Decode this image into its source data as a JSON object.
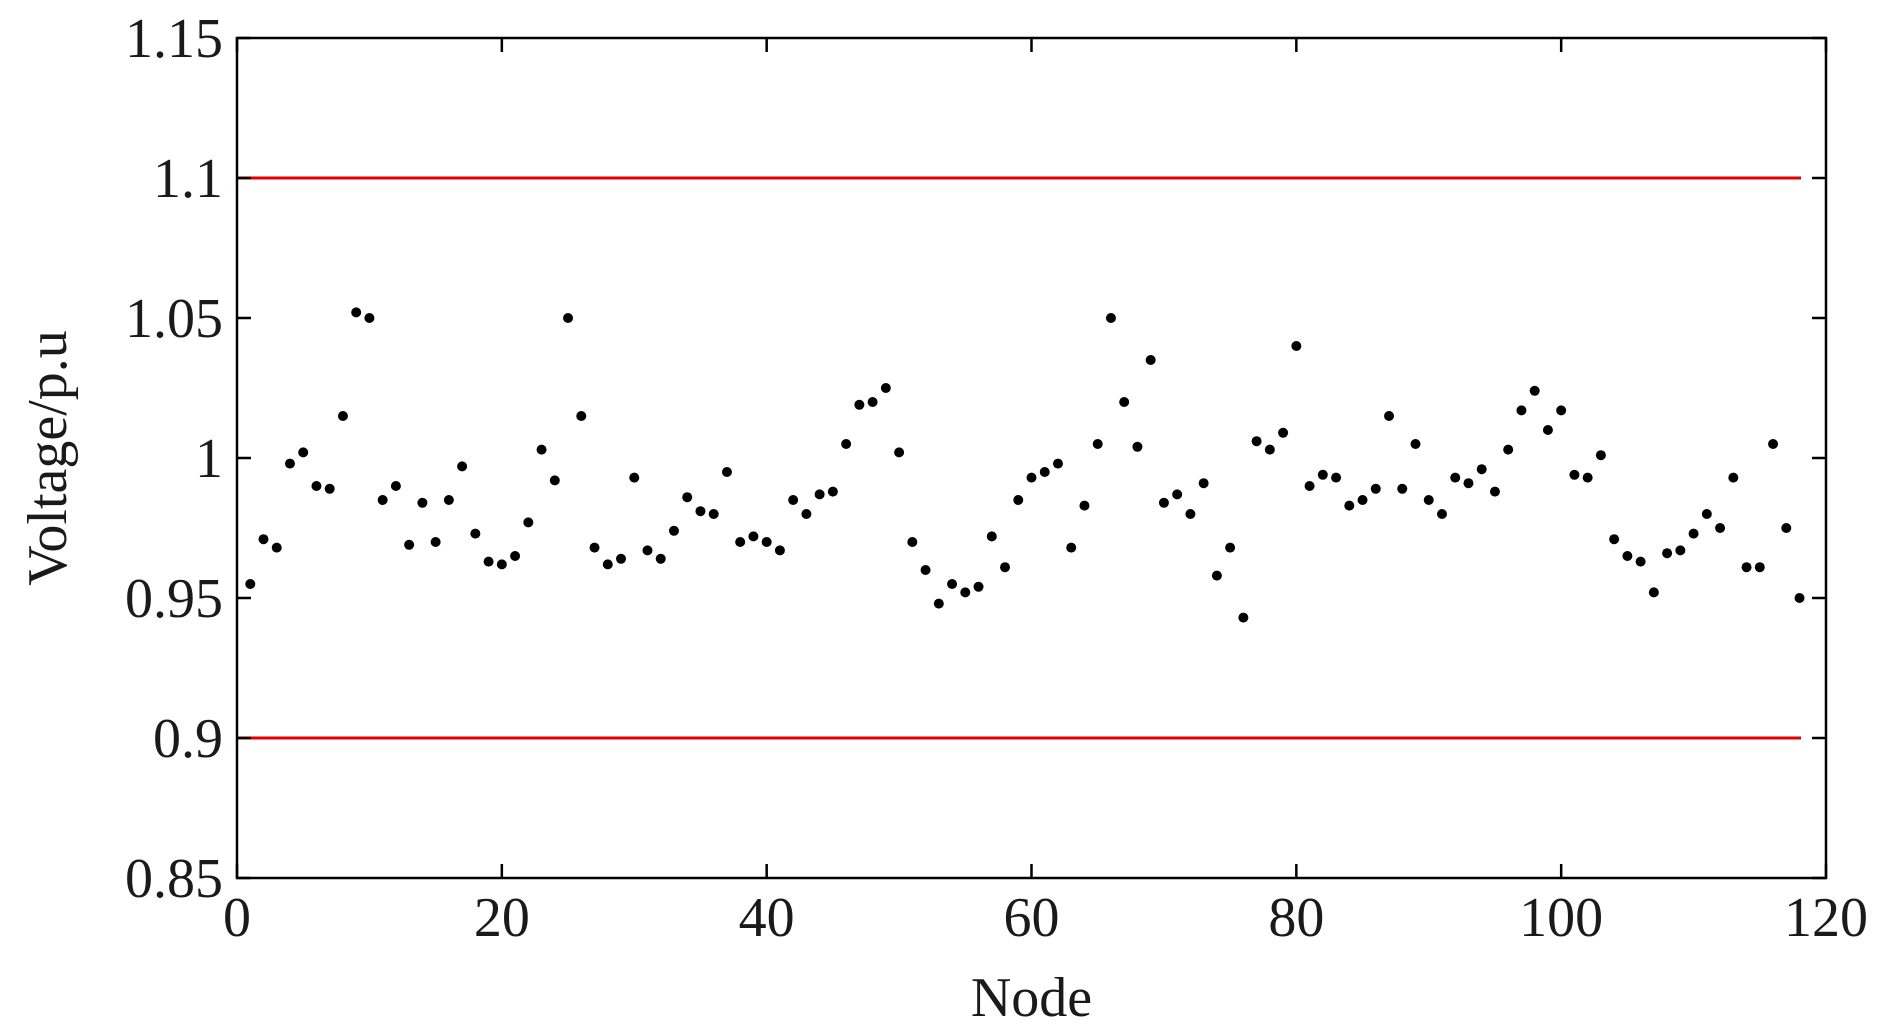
{
  "chart_data": {
    "type": "scatter",
    "xlabel": "Node",
    "ylabel": "Voltage/p.u",
    "xlim": [
      0,
      120
    ],
    "ylim": [
      0.85,
      1.15
    ],
    "xticks": [
      0,
      20,
      40,
      60,
      80,
      100,
      120
    ],
    "xtick_labels": [
      "0",
      "20",
      "40",
      "60",
      "80",
      "100",
      "120"
    ],
    "yticks": [
      0.85,
      0.9,
      0.95,
      1.0,
      1.05,
      1.1,
      1.15
    ],
    "ytick_labels": [
      "0.85",
      "0.9",
      "0.95",
      "1",
      "1.05",
      "1.1",
      "1.15"
    ],
    "grid": false,
    "colors": {
      "points": "#000000",
      "limits": "#e00000",
      "axes": "#000000"
    },
    "reference_lines": [
      {
        "y": 1.1
      },
      {
        "y": 0.9
      }
    ],
    "series": [
      {
        "x": [
          1,
          2,
          3,
          4,
          5,
          6,
          7,
          8,
          9,
          10,
          11,
          12,
          13,
          14,
          15,
          16,
          17,
          18,
          19,
          20,
          21,
          22,
          23,
          24,
          25,
          26,
          27,
          28,
          29,
          30,
          31,
          32,
          33,
          34,
          35,
          36,
          37,
          38,
          39,
          40,
          41,
          42,
          43,
          44,
          45,
          46,
          47,
          48,
          49,
          50,
          51,
          52,
          53,
          54,
          55,
          56,
          57,
          58,
          59,
          60,
          61,
          62,
          63,
          64,
          65,
          66,
          67,
          68,
          69,
          70,
          71,
          72,
          73,
          74,
          75,
          76,
          77,
          78,
          79,
          80,
          81,
          82,
          83,
          84,
          85,
          86,
          87,
          88,
          89,
          90,
          91,
          92,
          93,
          94,
          95,
          96,
          97,
          98,
          99,
          100,
          101,
          102,
          103,
          104,
          105,
          106,
          107,
          108,
          109,
          110,
          111,
          112,
          113,
          114,
          115,
          116,
          117,
          118
        ],
        "y": [
          0.955,
          0.971,
          0.968,
          0.998,
          1.002,
          0.99,
          0.989,
          1.015,
          1.052,
          1.05,
          0.985,
          0.99,
          0.969,
          0.984,
          0.97,
          0.985,
          0.997,
          0.973,
          0.963,
          0.962,
          0.965,
          0.977,
          1.003,
          0.992,
          1.05,
          1.015,
          0.968,
          0.962,
          0.964,
          0.993,
          0.967,
          0.964,
          0.974,
          0.986,
          0.981,
          0.98,
          0.995,
          0.97,
          0.972,
          0.97,
          0.967,
          0.985,
          0.98,
          0.987,
          0.988,
          1.005,
          1.019,
          1.02,
          1.025,
          1.002,
          0.97,
          0.96,
          0.948,
          0.955,
          0.952,
          0.954,
          0.972,
          0.961,
          0.985,
          0.993,
          0.995,
          0.998,
          0.968,
          0.983,
          1.005,
          1.05,
          1.02,
          1.004,
          1.035,
          0.984,
          0.987,
          0.98,
          0.991,
          0.958,
          0.968,
          0.943,
          1.006,
          1.003,
          1.009,
          1.04,
          0.99,
          0.994,
          0.993,
          0.983,
          0.985,
          0.989,
          1.015,
          0.989,
          1.005,
          0.985,
          0.98,
          0.993,
          0.991,
          0.996,
          0.988,
          1.003,
          1.017,
          1.024,
          1.01,
          1.017,
          0.994,
          0.993,
          1.001,
          0.971,
          0.965,
          0.963,
          0.952,
          0.966,
          0.967,
          0.973,
          0.98,
          0.975,
          0.993,
          0.961,
          0.961,
          1.005,
          0.975,
          0.95
        ]
      }
    ]
  }
}
